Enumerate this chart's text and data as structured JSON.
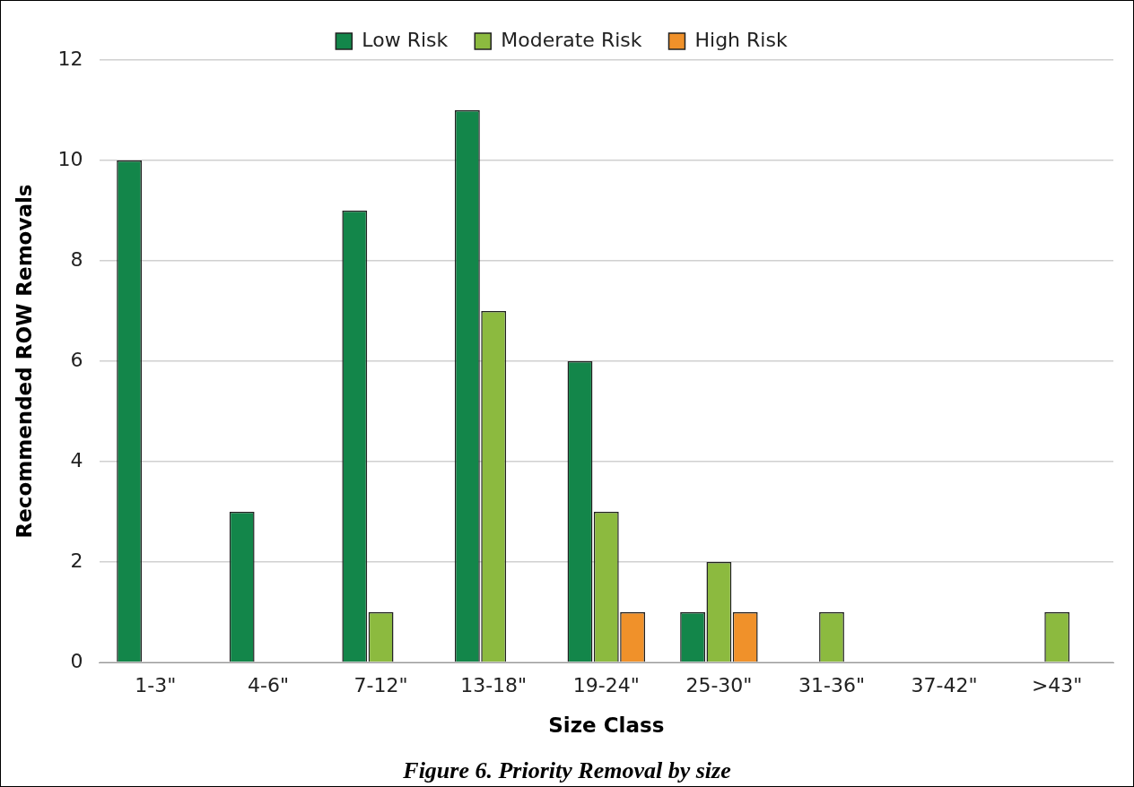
{
  "chart_data": {
    "type": "bar",
    "categories": [
      "1-3\"",
      "4-6\"",
      "7-12\"",
      "13-18\"",
      "19-24\"",
      "25-30\"",
      "31-36\"",
      "37-42\"",
      ">43\""
    ],
    "series": [
      {
        "name": "Low Risk",
        "color": "#13864a",
        "values": [
          10,
          3,
          9,
          11,
          6,
          1,
          0,
          0,
          0
        ]
      },
      {
        "name": "Moderate Risk",
        "color": "#8cba3f",
        "values": [
          0,
          0,
          1,
          7,
          3,
          2,
          1,
          0,
          1
        ]
      },
      {
        "name": "High Risk",
        "color": "#f0912a",
        "values": [
          0,
          0,
          0,
          0,
          1,
          1,
          0,
          0,
          0
        ]
      }
    ],
    "xlabel": "Size Class",
    "ylabel": "Recommended ROW Removals",
    "ylim": [
      0,
      12
    ],
    "yticks": [
      0,
      2,
      4,
      6,
      8,
      10,
      12
    ],
    "grid": "y",
    "legend": "top",
    "annotations": [
      "Figure 6. Priority Removal by size"
    ]
  }
}
